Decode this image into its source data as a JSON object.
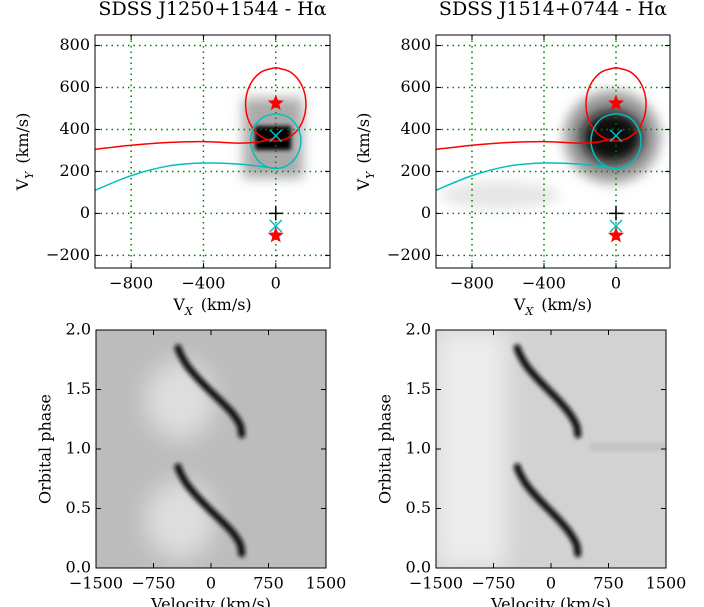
{
  "chart_data": [
    {
      "type": "tomogram",
      "title": "SDSS J1250+1544 - Hα",
      "xlabel": {
        "symbol": "V",
        "subscript": "X",
        "unit": "(km/s)"
      },
      "ylabel": {
        "symbol": "V",
        "subscript": "Y",
        "unit": "(km/s)"
      },
      "xlim": [
        -1000,
        300
      ],
      "ylim": [
        -260,
        850
      ],
      "xticks": [
        {
          "value": -800,
          "label": "−800"
        },
        {
          "value": -400,
          "label": "−400"
        },
        0
      ],
      "yticks": [
        {
          "value": -200,
          "label": "−200"
        },
        0,
        200,
        400,
        600,
        800
      ],
      "grid": true,
      "grid_color": "#008000",
      "curves": [
        {
          "color": "#ff0000",
          "x": [
            0,
            84,
            145,
            167,
            145,
            84,
            0,
            -84,
            -145,
            -167,
            -145,
            -84,
            0
          ],
          "y": [
            695,
            672,
            608,
            520,
            432,
            368,
            345,
            368,
            432,
            520,
            608,
            672,
            695
          ]
        },
        {
          "color": "#00bfbf",
          "x": [
            0,
            70,
            120,
            139,
            120,
            70,
            0,
            -70,
            -120,
            -139,
            -120,
            -70,
            0
          ],
          "y": [
            476,
            458,
            411,
            345,
            280,
            232,
            214,
            232,
            280,
            345,
            411,
            458,
            476
          ]
        },
        {
          "color": "#ff0000",
          "x": [
            -1000,
            -800,
            -600,
            -400,
            -200,
            -100,
            0
          ],
          "y": [
            305,
            325,
            338,
            342,
            335,
            340,
            360
          ]
        },
        {
          "color": "#00bfbf",
          "x": [
            -1000,
            -800,
            -600,
            -400,
            -200,
            -50,
            0
          ],
          "y": [
            110,
            180,
            225,
            240,
            235,
            220,
            215
          ]
        }
      ],
      "points": [
        {
          "marker": "star",
          "color": "#ff0000",
          "x": 0,
          "y": 525
        },
        {
          "marker": "star",
          "color": "#ff0000",
          "x": 0,
          "y": -105
        },
        {
          "marker": "plus",
          "color": "#000000",
          "x": 0,
          "y": 0
        },
        {
          "marker": "plus",
          "color": "#000000",
          "x": 0,
          "y": 380
        },
        {
          "marker": "cross",
          "color": "#00bfbf",
          "x": 0,
          "y": -60
        },
        {
          "marker": "cross",
          "color": "#00bfbf",
          "x": 0,
          "y": 370
        }
      ]
    },
    {
      "type": "tomogram",
      "title": "SDSS J1514+0744 - Hα",
      "xlabel": {
        "symbol": "V",
        "subscript": "X",
        "unit": "(km/s)"
      },
      "ylabel": {
        "symbol": "V",
        "subscript": "Y",
        "unit": "(km/s)"
      },
      "xlim": [
        -1000,
        300
      ],
      "ylim": [
        -260,
        850
      ],
      "xticks": [
        {
          "value": -800,
          "label": "−800"
        },
        {
          "value": -400,
          "label": "−400"
        },
        0
      ],
      "yticks": [
        {
          "value": -200,
          "label": "−200"
        },
        0,
        200,
        400,
        600,
        800
      ],
      "grid": true,
      "grid_color": "#008000",
      "curves": [
        {
          "color": "#ff0000",
          "x": [
            0,
            84,
            145,
            167,
            145,
            84,
            0,
            -84,
            -145,
            -167,
            -145,
            -84,
            0
          ],
          "y": [
            695,
            672,
            608,
            520,
            432,
            368,
            345,
            368,
            432,
            520,
            608,
            672,
            695
          ]
        },
        {
          "color": "#00bfbf",
          "x": [
            0,
            70,
            120,
            139,
            120,
            70,
            0,
            -70,
            -120,
            -139,
            -120,
            -70,
            0
          ],
          "y": [
            476,
            458,
            411,
            345,
            280,
            232,
            214,
            232,
            280,
            345,
            411,
            458,
            476
          ]
        },
        {
          "color": "#ff0000",
          "x": [
            -1000,
            -800,
            -600,
            -400,
            -200,
            -100,
            0
          ],
          "y": [
            305,
            325,
            338,
            342,
            335,
            340,
            360
          ]
        },
        {
          "color": "#00bfbf",
          "x": [
            -1000,
            -800,
            -600,
            -400,
            -200,
            -50,
            0
          ],
          "y": [
            110,
            180,
            225,
            240,
            235,
            220,
            215
          ]
        }
      ],
      "points": [
        {
          "marker": "star",
          "color": "#ff0000",
          "x": 0,
          "y": 525
        },
        {
          "marker": "star",
          "color": "#ff0000",
          "x": 0,
          "y": -105
        },
        {
          "marker": "plus",
          "color": "#000000",
          "x": 0,
          "y": 0
        },
        {
          "marker": "plus",
          "color": "#000000",
          "x": 0,
          "y": 380
        },
        {
          "marker": "cross",
          "color": "#00bfbf",
          "x": 0,
          "y": -60
        },
        {
          "marker": "cross",
          "color": "#00bfbf",
          "x": 0,
          "y": 370
        }
      ]
    },
    {
      "type": "spectrogram",
      "xlabel": "Velocity (km/s)",
      "ylabel": "Orbital phase",
      "xlim": [
        -1500,
        1500
      ],
      "ylim": [
        0,
        2
      ],
      "xticks": [
        {
          "value": -1500,
          "label": "−1500"
        },
        {
          "value": -750,
          "label": "−750"
        },
        0,
        750,
        1500
      ],
      "yticks": [
        {
          "value": 0,
          "label": "0.0"
        },
        0.5,
        {
          "value": 1,
          "label": "1.0"
        },
        1.5,
        {
          "value": 2,
          "label": "2.0"
        }
      ],
      "series": [
        {
          "color": "#111111",
          "x": [
            400,
            380,
            280,
            130,
            -30,
            -180,
            -310,
            -400,
            -430,
            null,
            400,
            380,
            280,
            130,
            -30,
            -180,
            -310,
            -400,
            -430
          ],
          "y": [
            0.12,
            0.2,
            0.3,
            0.4,
            0.5,
            0.6,
            0.7,
            0.8,
            0.85,
            null,
            1.12,
            1.2,
            1.3,
            1.4,
            1.5,
            1.6,
            1.7,
            1.8,
            1.85
          ]
        }
      ]
    },
    {
      "type": "spectrogram",
      "xlabel": "Velocity (km/s)",
      "ylabel": "Orbital phase",
      "xlim": [
        -1500,
        1500
      ],
      "ylim": [
        0,
        2
      ],
      "xticks": [
        {
          "value": -1500,
          "label": "−1500"
        },
        {
          "value": -750,
          "label": "−750"
        },
        0,
        750,
        1500
      ],
      "yticks": [
        {
          "value": 0,
          "label": "0.0"
        },
        0.5,
        {
          "value": 1,
          "label": "1.0"
        },
        1.5,
        {
          "value": 2,
          "label": "2.0"
        }
      ],
      "series": [
        {
          "color": "#0a0a0a",
          "x": [
            350,
            330,
            240,
            110,
            -40,
            -190,
            -320,
            -410,
            -440,
            null,
            350,
            330,
            240,
            110,
            -40,
            -190,
            -320,
            -410,
            -440
          ],
          "y": [
            0.12,
            0.2,
            0.3,
            0.4,
            0.5,
            0.6,
            0.7,
            0.8,
            0.85,
            null,
            1.12,
            1.2,
            1.3,
            1.4,
            1.5,
            1.6,
            1.7,
            1.8,
            1.85
          ]
        }
      ]
    }
  ]
}
